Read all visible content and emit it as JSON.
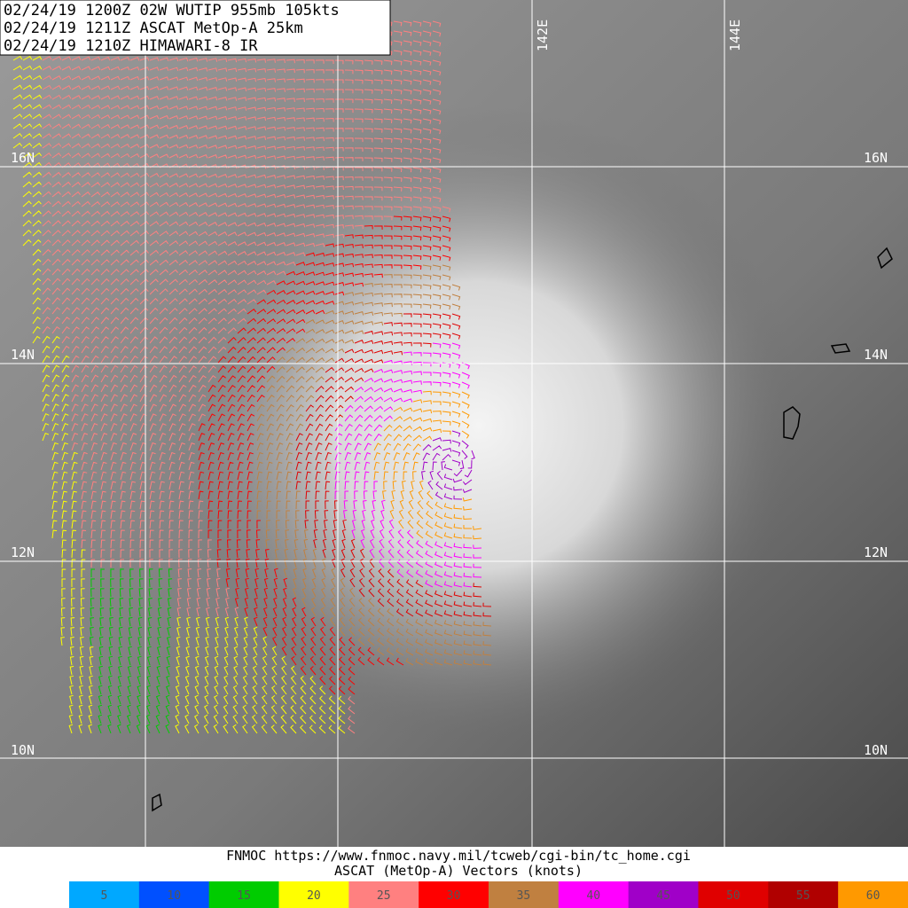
{
  "header": {
    "lines": [
      "02/24/19 1200Z  02W WUTIP 955mb 105kts",
      "02/24/19 1211Z  ASCAT MetOp-A 25km",
      "02/24/19 1210Z  HIMAWARI-8 IR"
    ]
  },
  "map": {
    "lat_labels": [
      "16N",
      "14N",
      "12N",
      "10N"
    ],
    "lon_labels": [
      "142E",
      "144E"
    ]
  },
  "footer": {
    "source": "FNMOC https://www.fnmoc.navy.mil/tcweb/cgi-bin/tc_home.cgi",
    "legend_title": "ASCAT (MetOp-A) Vectors (knots)"
  },
  "legend": {
    "items": [
      {
        "value": 5,
        "color": "#00a8ff"
      },
      {
        "value": 10,
        "color": "#0050ff"
      },
      {
        "value": 15,
        "color": "#00cc00"
      },
      {
        "value": 20,
        "color": "#ffff00"
      },
      {
        "value": 25,
        "color": "#ff8080"
      },
      {
        "value": 30,
        "color": "#ff0000"
      },
      {
        "value": 35,
        "color": "#c08040"
      },
      {
        "value": 40,
        "color": "#ff00ff"
      },
      {
        "value": 45,
        "color": "#a000c8"
      },
      {
        "value": 50,
        "color": "#e00000"
      },
      {
        "value": 55,
        "color": "#b00000"
      },
      {
        "value": 60,
        "color": "#ff9900"
      }
    ]
  }
}
